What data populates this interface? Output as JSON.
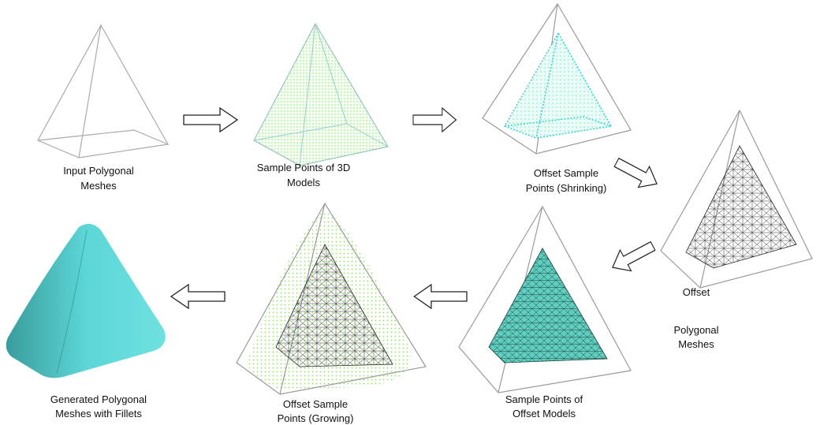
{
  "nodes": [
    {
      "label_lines": [
        "Input Polygonal",
        "Meshes"
      ]
    },
    {
      "label_lines": [
        "Sample Points of 3D",
        "Models"
      ]
    },
    {
      "label_lines": [
        "Offset Sample",
        "Points (Shrinking)"
      ]
    },
    {
      "label_lines": [
        "Offset",
        "Polygonal",
        "Meshes"
      ]
    },
    {
      "label_lines": [
        "Sample Points of",
        "Offset Models"
      ]
    },
    {
      "label_lines": [
        "Offset Sample",
        "Points (Growing)"
      ]
    },
    {
      "label_lines": [
        "Generated Polygonal",
        "Meshes with Fillets"
      ]
    }
  ]
}
